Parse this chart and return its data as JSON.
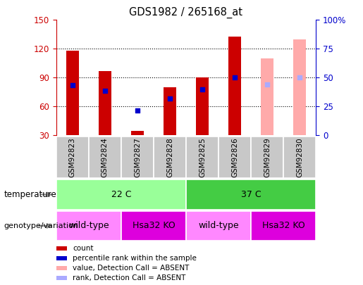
{
  "title": "GDS1982 / 265168_at",
  "samples": [
    "GSM92823",
    "GSM92824",
    "GSM92827",
    "GSM92828",
    "GSM92825",
    "GSM92826",
    "GSM92829",
    "GSM92830"
  ],
  "count_values": [
    118,
    97,
    35,
    80,
    90,
    133,
    null,
    null
  ],
  "rank_values": [
    82,
    76,
    56,
    68,
    78,
    90,
    null,
    null
  ],
  "count_absent": [
    null,
    null,
    null,
    null,
    null,
    null,
    110,
    130
  ],
  "rank_absent": [
    null,
    null,
    null,
    null,
    null,
    null,
    83,
    90
  ],
  "ylim_left": [
    30,
    150
  ],
  "ylim_right": [
    0,
    100
  ],
  "yticks_left": [
    30,
    60,
    90,
    120,
    150
  ],
  "yticks_right": [
    0,
    25,
    50,
    75,
    100
  ],
  "yticklabels_right": [
    "0",
    "25",
    "50",
    "75",
    "100%"
  ],
  "color_count": "#cc0000",
  "color_rank": "#0000cc",
  "color_count_absent": "#ffaaaa",
  "color_rank_absent": "#aaaaff",
  "color_left_axis": "#cc0000",
  "color_right_axis": "#0000cc",
  "temperature_row": [
    {
      "label": "22 C",
      "cols": [
        0,
        1,
        2,
        3
      ],
      "color": "#99ff99"
    },
    {
      "label": "37 C",
      "cols": [
        4,
        5,
        6,
        7
      ],
      "color": "#44cc44"
    }
  ],
  "genotype_row": [
    {
      "label": "wild-type",
      "cols": [
        0,
        1
      ],
      "color": "#ff88ff"
    },
    {
      "label": "Hsa32 KO",
      "cols": [
        2,
        3
      ],
      "color": "#dd00dd"
    },
    {
      "label": "wild-type",
      "cols": [
        4,
        5
      ],
      "color": "#ff88ff"
    },
    {
      "label": "Hsa32 KO",
      "cols": [
        6,
        7
      ],
      "color": "#dd00dd"
    }
  ],
  "legend_items": [
    {
      "label": "count",
      "color": "#cc0000"
    },
    {
      "label": "percentile rank within the sample",
      "color": "#0000cc"
    },
    {
      "label": "value, Detection Call = ABSENT",
      "color": "#ffaaaa"
    },
    {
      "label": "rank, Detection Call = ABSENT",
      "color": "#aaaaff"
    }
  ],
  "bar_width": 0.4,
  "temp_label": "temperature",
  "geno_label": "genotype/variation"
}
